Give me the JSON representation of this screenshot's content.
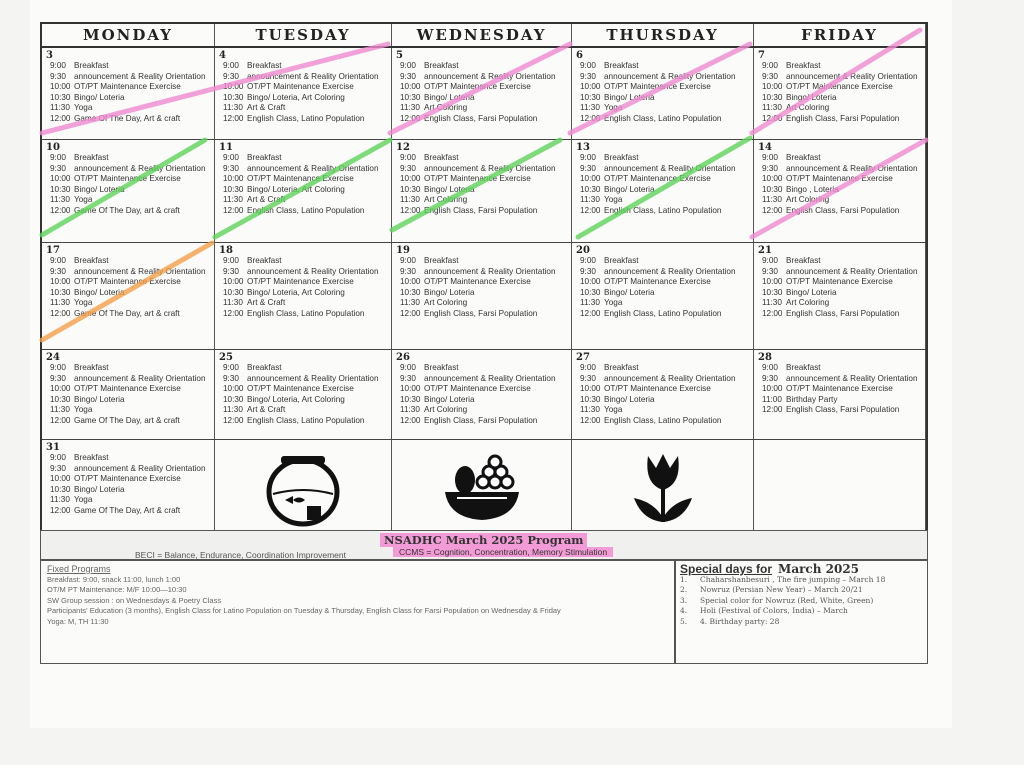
{
  "days": [
    "MONDAY",
    "TUESDAY",
    "WEDNESDAY",
    "THURSDAY",
    "FRIDAY"
  ],
  "marker_colors": {
    "pink": "#f08ad0",
    "green": "#5fd35a",
    "orange": "#f5a04a"
  },
  "weeks": [
    [
      {
        "n": "3",
        "ev": [
          [
            "9:00",
            "Breakfast"
          ],
          [
            "9:30",
            "announcement & Reality Orientation"
          ],
          [
            "10:00",
            "OT/PT Maintenance Exercise"
          ],
          [
            "10:30",
            "Bingo/ Loteria"
          ],
          [
            "11:30",
            "Yoga"
          ],
          [
            "12:00",
            "Game Of The Day, Art & craft"
          ]
        ]
      },
      {
        "n": "4",
        "ev": [
          [
            "9:00",
            "Breakfast"
          ],
          [
            "9:30",
            "announcement & Reality Orientation"
          ],
          [
            "10:00",
            "OT/PT Maintenance Exercise"
          ],
          [
            "10:30",
            "Bingo/ Loteria, Art Coloring"
          ],
          [
            "11:30",
            "Art & Craft"
          ],
          [
            "12:00",
            "English Class, Latino Population"
          ]
        ]
      },
      {
        "n": "5",
        "ev": [
          [
            "9:00",
            "Breakfast"
          ],
          [
            "9:30",
            "announcement & Reality Orientation"
          ],
          [
            "10:00",
            "OT/PT Maintenance Exercise"
          ],
          [
            "10:30",
            "Bingo/ Loteria"
          ],
          [
            "11:30",
            "Art Coloring"
          ],
          [
            "12:00",
            "English Class, Farsi Population"
          ]
        ]
      },
      {
        "n": "6",
        "ev": [
          [
            "9:00",
            "Breakfast"
          ],
          [
            "9:30",
            "announcement & Reality Orientation"
          ],
          [
            "10:00",
            "OT/PT Maintenance Exercise"
          ],
          [
            "10:30",
            "Bingo/ Loteria"
          ],
          [
            "11:30",
            "Yoga"
          ],
          [
            "12:00",
            "English Class, Latino Population"
          ]
        ]
      },
      {
        "n": "7",
        "ev": [
          [
            "9:00",
            "Breakfast"
          ],
          [
            "9:30",
            "announcement & Reality Orientation"
          ],
          [
            "10:00",
            "OT/PT Maintenance Exercise"
          ],
          [
            "10:30",
            "Bingo/ Loteria"
          ],
          [
            "11:30",
            "Art Coloring"
          ],
          [
            "12:00",
            "English Class, Farsi Population"
          ]
        ]
      }
    ],
    [
      {
        "n": "10",
        "ev": [
          [
            "9:00",
            "Breakfast"
          ],
          [
            "9:30",
            "announcement & Reality Orientation"
          ],
          [
            "10:00",
            "OT/PT Maintenance Exercise"
          ],
          [
            "10:30",
            "Bingo/ Loteria"
          ],
          [
            "11:30",
            "Yoga"
          ],
          [
            "12:00",
            "Game Of The Day, art & craft"
          ]
        ]
      },
      {
        "n": "11",
        "ev": [
          [
            "9:00",
            "Breakfast"
          ],
          [
            "9:30",
            "announcement & Reality Orientation"
          ],
          [
            "10:00",
            "OT/PT Maintenance Exercise"
          ],
          [
            "10:30",
            "Bingo/ Loteria, Art Coloring"
          ],
          [
            "11:30",
            "Art & Craft"
          ],
          [
            "12:00",
            "English Class, Latino Population"
          ]
        ]
      },
      {
        "n": "12",
        "ev": [
          [
            "9:00",
            "Breakfast"
          ],
          [
            "9:30",
            "announcement & Reality Orientation"
          ],
          [
            "10:00",
            "OT/PT Maintenance Exercise"
          ],
          [
            "10:30",
            "Bingo/ Loteria"
          ],
          [
            "11:30",
            "Art Coloring"
          ],
          [
            "12:00",
            "English Class, Farsi Population"
          ]
        ]
      },
      {
        "n": "13",
        "ev": [
          [
            "9:00",
            "Breakfast"
          ],
          [
            "9:30",
            "announcement & Reality Orientation"
          ],
          [
            "10:00",
            "OT/PT Maintenance Exercise"
          ],
          [
            "10:30",
            "Bingo/ Loteria"
          ],
          [
            "11:30",
            "Yoga"
          ],
          [
            "12:00",
            "English Class, Latino Population"
          ]
        ]
      },
      {
        "n": "14",
        "ev": [
          [
            "9:00",
            "Breakfast"
          ],
          [
            "9:30",
            "announcement & Reality Orientation"
          ],
          [
            "10:00",
            "OT/PT Maintenance Exercise"
          ],
          [
            "10:30",
            "Bingo , Loteria"
          ],
          [
            "11:30",
            "Art Coloring"
          ],
          [
            "12:00",
            "English Class, Farsi Population"
          ]
        ]
      }
    ],
    [
      {
        "n": "17",
        "ev": [
          [
            "9:00",
            "Breakfast"
          ],
          [
            "9:30",
            "announcement & Reality Orientation"
          ],
          [
            "10:00",
            "OT/PT Maintenance Exercise"
          ],
          [
            "10:30",
            "Bingo/ Loteria"
          ],
          [
            "11:30",
            "Yoga"
          ],
          [
            "12:00",
            "Game Of The Day,  art & craft"
          ]
        ]
      },
      {
        "n": "18",
        "ev": [
          [
            "9:00",
            "Breakfast"
          ],
          [
            "9:30",
            "announcement & Reality Orientation"
          ],
          [
            "10:00",
            "OT/PT Maintenance Exercise"
          ],
          [
            "10:30",
            "Bingo/ Loteria, Art Coloring"
          ],
          [
            "11:30",
            "Art & Craft"
          ],
          [
            "12:00",
            "English Class, Latino Population"
          ]
        ]
      },
      {
        "n": "19",
        "ev": [
          [
            "9:00",
            "Breakfast"
          ],
          [
            "9:30",
            "announcement & Reality Orientation"
          ],
          [
            "10:00",
            "OT/PT Maintenance Exercise"
          ],
          [
            "10:30",
            "Bingo/ Loteria"
          ],
          [
            "11:30",
            "Art Coloring"
          ],
          [
            "12:00",
            "English Class, Farsi Population"
          ]
        ]
      },
      {
        "n": "20",
        "ev": [
          [
            "9:00",
            "Breakfast"
          ],
          [
            "9:30",
            "announcement & Reality Orientation"
          ],
          [
            "10:00",
            "OT/PT Maintenance Exercise"
          ],
          [
            "10:30",
            "Bingo/ Loteria"
          ],
          [
            "11:30",
            "Yoga"
          ],
          [
            "12:00",
            "English Class, Latino Population"
          ]
        ]
      },
      {
        "n": "21",
        "ev": [
          [
            "9:00",
            "Breakfast"
          ],
          [
            "9:30",
            "announcement & Reality Orientation"
          ],
          [
            "10:00",
            "OT/PT Maintenance Exercise"
          ],
          [
            "10:30",
            "Bingo/ Loteria"
          ],
          [
            "11:30",
            "Art Coloring"
          ],
          [
            "12:00",
            "English Class, Farsi Population"
          ]
        ]
      }
    ],
    [
      {
        "n": "24",
        "ev": [
          [
            "9:00",
            "Breakfast"
          ],
          [
            "9:30",
            "announcement & Reality Orientation"
          ],
          [
            "10:00",
            "OT/PT Maintenance Exercise"
          ],
          [
            "10:30",
            "Bingo/ Loteria"
          ],
          [
            "11:30",
            "Yoga"
          ],
          [
            "12:00",
            "Game Of The Day,  art & craft"
          ]
        ]
      },
      {
        "n": "25",
        "ev": [
          [
            "9:00",
            "Breakfast"
          ],
          [
            "9:30",
            "announcement & Reality Orientation"
          ],
          [
            "10:00",
            "OT/PT Maintenance Exercise"
          ],
          [
            "10:30",
            "Bingo/ Loteria, Art Coloring"
          ],
          [
            "11:30",
            "Art & Craft"
          ],
          [
            "12:00",
            "English Class, Latino Population"
          ]
        ]
      },
      {
        "n": "26",
        "ev": [
          [
            "9:00",
            "Breakfast"
          ],
          [
            "9:30",
            "announcement & Reality Orientation"
          ],
          [
            "10:00",
            "OT/PT Maintenance Exercise"
          ],
          [
            "10:30",
            "Bingo/ Loteria"
          ],
          [
            "11:30",
            "Art Coloring"
          ],
          [
            "12:00",
            "English Class, Farsi Population"
          ]
        ]
      },
      {
        "n": "27",
        "ev": [
          [
            "9:00",
            "Breakfast"
          ],
          [
            "9:30",
            "announcement & Reality Orientation"
          ],
          [
            "10:00",
            "OT/PT Maintenance Exercise"
          ],
          [
            "10:30",
            "Bingo/ Loteria"
          ],
          [
            "11:30",
            "Yoga"
          ],
          [
            "12:00",
            "English Class, Latino Population"
          ]
        ]
      },
      {
        "n": "28",
        "ev": [
          [
            "9:00",
            "Breakfast"
          ],
          [
            "9:30",
            "announcement & Reality Orientation"
          ],
          [
            "10:00",
            "OT/PT Maintenance Exercise"
          ],
          [
            "11:00",
            "Birthday Party"
          ],
          [
            "12:00",
            "English Class, Farsi Population"
          ]
        ]
      }
    ],
    [
      {
        "n": "31",
        "ev": [
          [
            "9:00",
            "Breakfast"
          ],
          [
            "9:30",
            "announcement & Reality Orientation"
          ],
          [
            "10:00",
            "OT/PT Maintenance Exercise"
          ],
          [
            "10:30",
            "Bingo/ Loteria"
          ],
          [
            "11:30",
            "Yoga"
          ],
          [
            "12:00",
            "Game Of The Day, Art & craft"
          ]
        ]
      },
      {
        "pic": "fishbowl-icon"
      },
      {
        "pic": "fruit-bowl-icon"
      },
      {
        "pic": "tulip-icon"
      },
      {
        "pic": ""
      }
    ]
  ],
  "program_title": "NSADHC March 2025 Program",
  "beci": "BECI = Balance, Endurance,  Coordination Improvement",
  "ccms": "CCMS = Cognition, Concentration, Memory Stimulation",
  "fixed": {
    "heading": "Fixed Programs",
    "lines": [
      "Breakfast: 9:00, snack 11:00, lunch 1:00",
      "OT/M PT Maintenance: M/F 10:00—10:30",
      "SW Group session : on Wednesdays & Poetry Class",
      "Participants' Education (3 months), English Class for Latino Population on Tuesday & Thursday, English Class for Farsi Population on Wednesday & Friday",
      "Yoga: M, TH 11:30"
    ]
  },
  "special": {
    "heading": "Special days for",
    "month": "March 2025",
    "items": [
      [
        "1.",
        "Chaharshanbesuri , The fire jumping – March 18"
      ],
      [
        "2.",
        "Nowruz (Persian New Year) – March 20/21"
      ],
      [
        "3.",
        "Special color for Nowruz (Red, White, Green)"
      ],
      [
        "4.",
        "Holi (Festival of Colors, India) – March"
      ],
      [
        "5.",
        "4. Birthday party: 28"
      ]
    ]
  }
}
